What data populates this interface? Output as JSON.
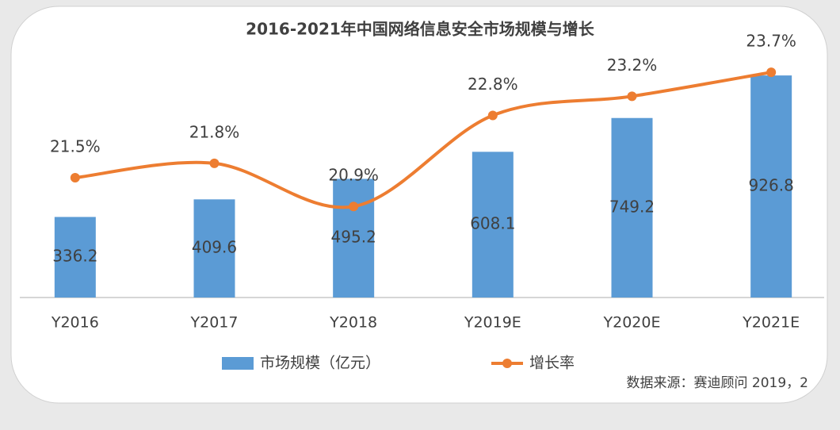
{
  "chart_data": {
    "type": "bar-line",
    "title": "2016-2021年中国网络信息安全市场规模与增长",
    "categories": [
      "Y2016",
      "Y2017",
      "Y2018",
      "Y2019E",
      "Y2020E",
      "Y2021E"
    ],
    "series": [
      {
        "name": "市场规模（亿元）",
        "type": "bar",
        "color": "#5b9bd5",
        "values": [
          336.2,
          409.6,
          495.2,
          608.1,
          749.2,
          926.8
        ]
      },
      {
        "name": "增长率",
        "type": "line",
        "axis": "y2",
        "color": "#ed7d31",
        "values": [
          21.5,
          21.8,
          20.9,
          22.8,
          23.2,
          23.7
        ],
        "value_labels": [
          "21.5%",
          "21.8%",
          "20.9%",
          "22.8%",
          "23.2%",
          "23.7%"
        ]
      }
    ],
    "ylim": [
      0,
      1000
    ],
    "y2lim": [
      19,
      24
    ],
    "source": "数据来源：赛迪顾问 2019，2"
  }
}
